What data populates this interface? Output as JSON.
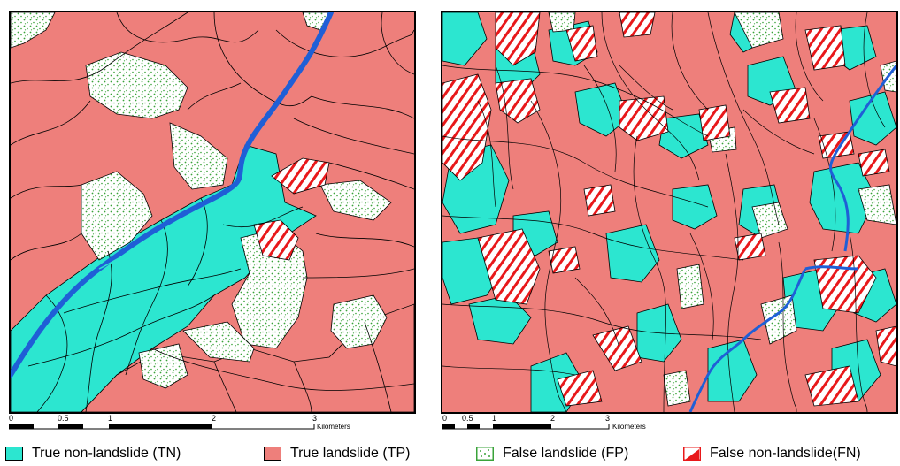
{
  "maps": [
    {
      "scale": {
        "ticks": [
          "0",
          "0.5",
          "1",
          "2",
          "3"
        ],
        "unit": "Kilometers"
      }
    },
    {
      "scale": {
        "ticks": [
          "0",
          "0.5",
          "1",
          "2",
          "3"
        ],
        "unit": "Kilometers"
      }
    }
  ],
  "legend": [
    {
      "label": "True non-landslide (TN)",
      "class": "TN",
      "color": "#2ce6d0"
    },
    {
      "label": "True landslide (TP)",
      "class": "TP",
      "color": "#ee7f7b"
    },
    {
      "label": "False landslide (FP)",
      "class": "FP",
      "color": "#3aa33a"
    },
    {
      "label": "False non-landslide(FN)",
      "class": "FN",
      "color": "#e8181a"
    }
  ],
  "colors": {
    "tn_fill": "#2ce6d0",
    "tp_fill": "#ee7f7b",
    "fp_stipple": "#3aa33a",
    "fn_hatch": "#e8181a",
    "river": "#1f5fd6",
    "boundary": "#000000"
  }
}
